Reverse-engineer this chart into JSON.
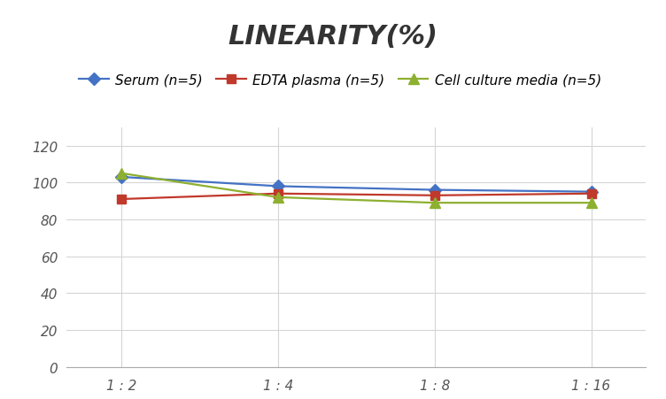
{
  "title": "LINEARITY(%)",
  "x_labels": [
    "1 : 2",
    "1 : 4",
    "1 : 8",
    "1 : 16"
  ],
  "x_positions": [
    0,
    1,
    2,
    3
  ],
  "series": [
    {
      "label": "Serum (n=5)",
      "values": [
        103,
        98,
        96,
        95
      ],
      "color": "#4472C4",
      "marker": "D",
      "markersize": 7,
      "linewidth": 1.6
    },
    {
      "label": "EDTA plasma (n=5)",
      "values": [
        91,
        94,
        93,
        94
      ],
      "color": "#C0392B",
      "marker": "s",
      "markersize": 7,
      "linewidth": 1.6
    },
    {
      "label": "Cell culture media (n=5)",
      "values": [
        105,
        92,
        89,
        89
      ],
      "color": "#8DB030",
      "marker": "^",
      "markersize": 8,
      "linewidth": 1.6
    }
  ],
  "ylim": [
    0,
    130
  ],
  "yticks": [
    0,
    20,
    40,
    60,
    80,
    100,
    120
  ],
  "background_color": "#ffffff",
  "grid_color": "#d5d5d5",
  "title_fontsize": 22,
  "tick_fontsize": 11,
  "legend_fontsize": 11
}
